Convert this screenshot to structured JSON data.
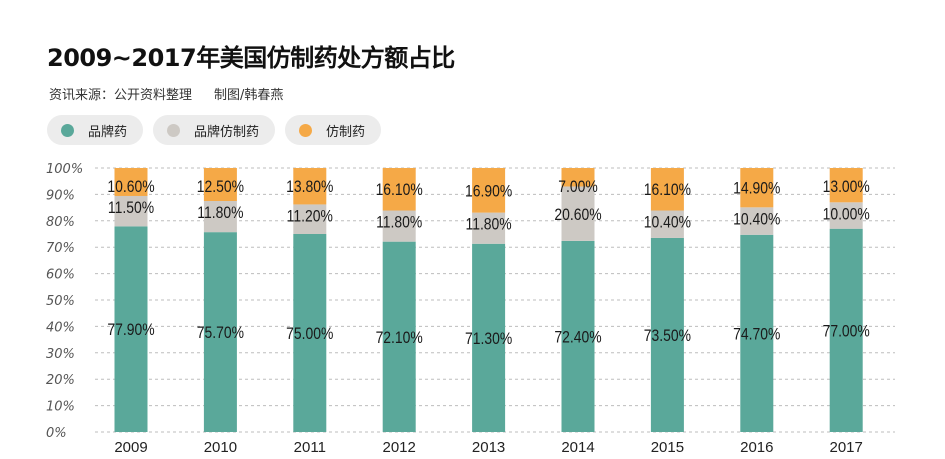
{
  "title": "2009~2017年美国仿制药处方额占比",
  "source": "资讯来源：公开资料整理",
  "author": "制图/韩春燕",
  "chart_data": {
    "type": "bar",
    "stacked": true,
    "title": "2009~2017年美国仿制药处方额占比",
    "xlabel": "",
    "ylabel": "",
    "ylim": [
      0,
      100
    ],
    "yticks": [
      "0%",
      "10%",
      "20%",
      "30%",
      "40%",
      "50%",
      "60%",
      "70%",
      "80%",
      "90%",
      "100%"
    ],
    "grid": true,
    "legend_position": "top-left",
    "categories": [
      "2009",
      "2010",
      "2011",
      "2012",
      "2013",
      "2014",
      "2015",
      "2016",
      "2017"
    ],
    "series": [
      {
        "name": "品牌药",
        "color": "#5aa89a",
        "values": [
          77.9,
          75.7,
          75.0,
          72.1,
          71.3,
          72.4,
          73.5,
          74.7,
          77.0
        ],
        "labels": [
          "77.90%",
          "75.70%",
          "75.00%",
          "72.10%",
          "71.30%",
          "72.40%",
          "73.50%",
          "74.70%",
          "77.00%"
        ]
      },
      {
        "name": "品牌仿制药",
        "color": "#cdc9c4",
        "values": [
          11.5,
          11.8,
          11.2,
          11.8,
          11.8,
          20.6,
          10.4,
          10.4,
          10.0
        ],
        "labels": [
          "11.50%",
          "11.80%",
          "11.20%",
          "11.80%",
          "11.80%",
          "20.60%",
          "10.40%",
          "10.40%",
          "10.00%"
        ]
      },
      {
        "name": "仿制药",
        "color": "#f5a947",
        "values": [
          10.6,
          12.5,
          13.8,
          16.1,
          16.9,
          7.0,
          16.1,
          14.9,
          13.0
        ],
        "labels": [
          "10.60%",
          "12.50%",
          "13.80%",
          "16.10%",
          "16.90%",
          "7.00%",
          "16.10%",
          "14.90%",
          "13.00%"
        ]
      }
    ]
  }
}
